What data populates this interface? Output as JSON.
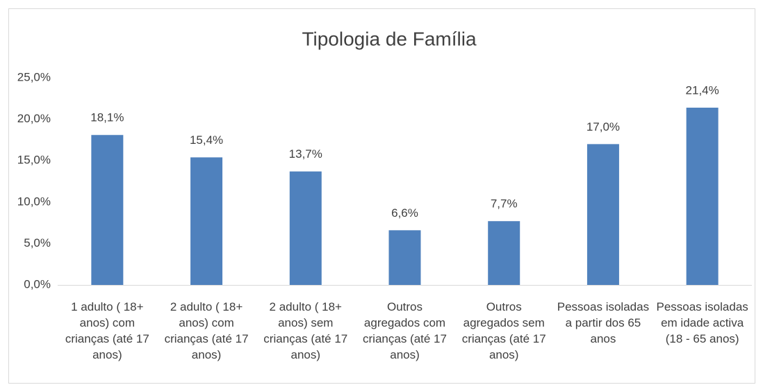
{
  "chart_data": {
    "type": "bar",
    "title": "Tipologia de Família",
    "categories": [
      "1 adulto ( 18+ anos) com crianças (até 17 anos)",
      "2 adulto ( 18+ anos) com crianças (até 17 anos)",
      "2 adulto ( 18+ anos) sem crianças (até 17 anos)",
      "Outros agregados com crianças (até 17 anos)",
      "Outros agregados sem crianças (até 17 anos)",
      "Pessoas isoladas a partir dos 65 anos",
      "Pessoas isoladas em idade activa (18 - 65 anos)"
    ],
    "values": [
      18.1,
      15.4,
      13.7,
      6.6,
      7.7,
      17.0,
      21.4
    ],
    "value_labels": [
      "18,1%",
      "15,4%",
      "13,7%",
      "6,6%",
      "7,7%",
      "17,0%",
      "21,4%"
    ],
    "color": "#4f81bd",
    "ylim": [
      0,
      25
    ],
    "yticks": [
      {
        "value": 0,
        "label": "0,0%"
      },
      {
        "value": 5,
        "label": "5,0%"
      },
      {
        "value": 10,
        "label": "10,0%"
      },
      {
        "value": 15,
        "label": "15,0%"
      },
      {
        "value": 20,
        "label": "20,0%"
      },
      {
        "value": 25,
        "label": "25,0%"
      }
    ],
    "grid": false
  }
}
